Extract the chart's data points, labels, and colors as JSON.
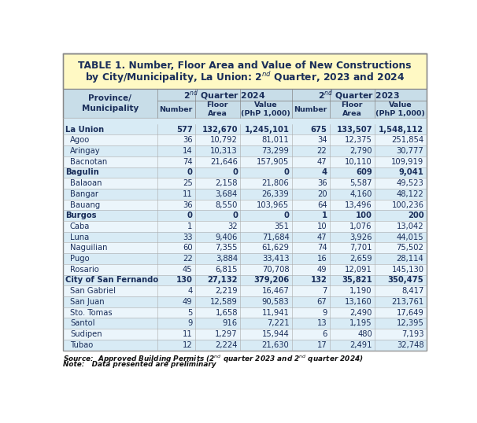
{
  "title_line1": "TABLE 1. Number, Floor Area and Value of New Constructions",
  "title_line2": "by City/Municipality, La Union: 2$^{nd}$ Quarter, 2023 and 2024",
  "rows": [
    [
      "La Union",
      "577",
      "132,670",
      "1,245,101",
      "675",
      "133,507",
      "1,548,112"
    ],
    [
      "Agoo",
      "36",
      "10,792",
      "81,011",
      "34",
      "12,375",
      "251,854"
    ],
    [
      "Aringay",
      "14",
      "10,313",
      "73,299",
      "22",
      "2,790",
      "30,777"
    ],
    [
      "Bacnotan",
      "74",
      "21,646",
      "157,905",
      "47",
      "10,110",
      "109,919"
    ],
    [
      "Bagulin",
      "0",
      "0",
      "0",
      "4",
      "609",
      "9,041"
    ],
    [
      "Balaoan",
      "25",
      "2,158",
      "21,806",
      "36",
      "5,587",
      "49,523"
    ],
    [
      "Bangar",
      "11",
      "3,684",
      "26,339",
      "20",
      "4,160",
      "48,122"
    ],
    [
      "Bauang",
      "36",
      "8,550",
      "103,965",
      "64",
      "13,496",
      "100,236"
    ],
    [
      "Burgos",
      "0",
      "0",
      "0",
      "1",
      "100",
      "200"
    ],
    [
      "Caba",
      "1",
      "32",
      "351",
      "10",
      "1,076",
      "13,042"
    ],
    [
      "Luna",
      "33",
      "9,406",
      "71,684",
      "47",
      "3,926",
      "44,015"
    ],
    [
      "Naguilian",
      "60",
      "7,355",
      "61,629",
      "74",
      "7,701",
      "75,502"
    ],
    [
      "Pugo",
      "22",
      "3,884",
      "33,413",
      "16",
      "2,659",
      "28,114"
    ],
    [
      "Rosario",
      "45",
      "6,815",
      "70,708",
      "49",
      "12,091",
      "145,130"
    ],
    [
      "City of San Fernando",
      "130",
      "27,132",
      "379,206",
      "132",
      "35,821",
      "350,475"
    ],
    [
      "San Gabriel",
      "4",
      "2,219",
      "16,467",
      "7",
      "1,190",
      "8,417"
    ],
    [
      "San Juan",
      "49",
      "12,589",
      "90,583",
      "67",
      "13,160",
      "213,761"
    ],
    [
      "Sto. Tomas",
      "5",
      "1,658",
      "11,941",
      "9",
      "2,490",
      "17,649"
    ],
    [
      "Santol",
      "9",
      "916",
      "7,221",
      "13",
      "1,195",
      "12,395"
    ],
    [
      "Sudipen",
      "11",
      "1,297",
      "15,944",
      "6",
      "480",
      "7,193"
    ],
    [
      "Tubao",
      "12",
      "2,224",
      "21,630",
      "17",
      "2,491",
      "32,748"
    ]
  ],
  "bold_rows": [
    0,
    4,
    8,
    14
  ],
  "title_bg": "#FFF9C4",
  "header_bg": "#C8DDE8",
  "row_bg_light": "#D8EBF5",
  "row_bg_mid": "#C8DDE8",
  "text_color": "#1A2E5A",
  "source_note": "Source:  Approved Building Permits (2nd quarter 2023 and 2nd quarter 2024)",
  "note_text": "Note:   Data presented are preliminary"
}
